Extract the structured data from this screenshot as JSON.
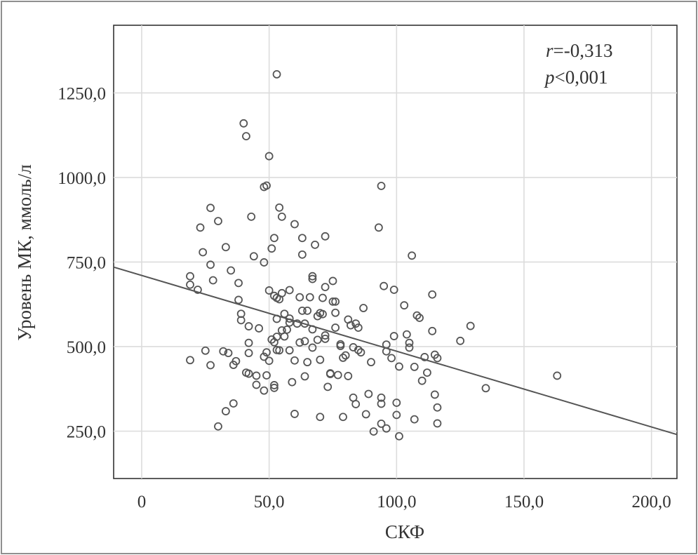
{
  "chart_data": {
    "type": "scatter",
    "title": "",
    "xlabel": "СКФ",
    "ylabel": "Уровень МК, ммоль/л",
    "xlim": [
      -11,
      210
    ],
    "ylim": [
      110,
      1450
    ],
    "x_ticks": [
      0,
      50,
      100,
      150,
      200
    ],
    "x_tick_labels": [
      "0",
      "50,0",
      "100,0",
      "150,0",
      "200,0"
    ],
    "y_ticks": [
      250,
      500,
      750,
      1000,
      1250
    ],
    "y_tick_labels": [
      "250,0",
      "500,0",
      "750,0",
      "1000,0",
      "1250,0"
    ],
    "grid": true,
    "annotation": {
      "r_symbol": "r",
      "r_value": "=-0,313",
      "p_symbol": "p",
      "p_value": "<0,001"
    },
    "regression_line": {
      "x": [
        -11,
        210
      ],
      "y": [
        735,
        240
      ]
    },
    "points": [
      [
        19,
        708
      ],
      [
        19,
        683
      ],
      [
        19,
        460
      ],
      [
        22,
        668
      ],
      [
        23,
        852
      ],
      [
        24,
        779
      ],
      [
        25,
        488
      ],
      [
        27,
        910
      ],
      [
        27,
        742
      ],
      [
        27,
        445
      ],
      [
        28,
        696
      ],
      [
        30,
        871
      ],
      [
        30,
        264
      ],
      [
        32,
        486
      ],
      [
        33,
        794
      ],
      [
        33,
        309
      ],
      [
        34,
        481
      ],
      [
        35,
        725
      ],
      [
        36,
        446
      ],
      [
        36,
        332
      ],
      [
        37,
        457
      ],
      [
        38,
        688
      ],
      [
        38,
        638
      ],
      [
        39,
        597
      ],
      [
        39,
        578
      ],
      [
        40,
        1160
      ],
      [
        41,
        1122
      ],
      [
        41,
        423
      ],
      [
        42,
        560
      ],
      [
        42,
        511
      ],
      [
        42,
        481
      ],
      [
        42,
        420
      ],
      [
        43,
        884
      ],
      [
        44,
        767
      ],
      [
        45,
        414
      ],
      [
        45,
        387
      ],
      [
        46,
        554
      ],
      [
        48,
        972
      ],
      [
        48,
        749
      ],
      [
        48,
        470
      ],
      [
        48,
        370
      ],
      [
        49,
        976
      ],
      [
        49,
        415
      ],
      [
        49,
        483
      ],
      [
        50,
        1063
      ],
      [
        50,
        666
      ],
      [
        50,
        458
      ],
      [
        51,
        790
      ],
      [
        51,
        521
      ],
      [
        52,
        821
      ],
      [
        52,
        650
      ],
      [
        52,
        513
      ],
      [
        52,
        386
      ],
      [
        52,
        378
      ],
      [
        53,
        1305
      ],
      [
        53,
        644
      ],
      [
        53,
        582
      ],
      [
        53,
        529
      ],
      [
        53,
        490
      ],
      [
        54,
        911
      ],
      [
        54,
        640
      ],
      [
        54,
        489
      ],
      [
        55,
        884
      ],
      [
        55,
        658
      ],
      [
        55,
        548
      ],
      [
        56,
        597
      ],
      [
        56,
        530
      ],
      [
        57,
        550
      ],
      [
        58,
        667
      ],
      [
        58,
        583
      ],
      [
        58,
        571
      ],
      [
        58,
        489
      ],
      [
        59,
        395
      ],
      [
        60,
        862
      ],
      [
        60,
        459
      ],
      [
        60,
        301
      ],
      [
        61,
        568
      ],
      [
        62,
        646
      ],
      [
        62,
        512
      ],
      [
        63,
        821
      ],
      [
        63,
        772
      ],
      [
        63,
        606
      ],
      [
        64,
        568
      ],
      [
        64,
        516
      ],
      [
        64,
        412
      ],
      [
        65,
        606
      ],
      [
        65,
        454
      ],
      [
        66,
        646
      ],
      [
        67,
        708
      ],
      [
        67,
        700
      ],
      [
        67,
        551
      ],
      [
        67,
        497
      ],
      [
        68,
        801
      ],
      [
        69,
        590
      ],
      [
        69,
        520
      ],
      [
        70,
        599
      ],
      [
        70,
        461
      ],
      [
        70,
        292
      ],
      [
        71,
        644
      ],
      [
        71,
        596
      ],
      [
        72,
        826
      ],
      [
        72,
        676
      ],
      [
        72,
        533
      ],
      [
        72,
        523
      ],
      [
        73,
        381
      ],
      [
        74,
        421
      ],
      [
        74,
        419
      ],
      [
        75,
        694
      ],
      [
        75,
        633
      ],
      [
        76,
        633
      ],
      [
        76,
        600
      ],
      [
        76,
        556
      ],
      [
        77,
        416
      ],
      [
        78,
        502
      ],
      [
        78,
        507
      ],
      [
        79,
        467
      ],
      [
        79,
        292
      ],
      [
        80,
        474
      ],
      [
        81,
        580
      ],
      [
        81,
        413
      ],
      [
        82,
        563
      ],
      [
        83,
        498
      ],
      [
        83,
        349
      ],
      [
        84,
        568
      ],
      [
        84,
        330
      ],
      [
        85,
        556
      ],
      [
        85,
        490
      ],
      [
        86,
        483
      ],
      [
        87,
        614
      ],
      [
        88,
        300
      ],
      [
        89,
        360
      ],
      [
        90,
        454
      ],
      [
        91,
        249
      ],
      [
        93,
        852
      ],
      [
        94,
        975
      ],
      [
        94,
        349
      ],
      [
        94,
        331
      ],
      [
        94,
        272
      ],
      [
        95,
        679
      ],
      [
        96,
        506
      ],
      [
        96,
        486
      ],
      [
        96,
        258
      ],
      [
        98,
        466
      ],
      [
        99,
        668
      ],
      [
        99,
        531
      ],
      [
        100,
        334
      ],
      [
        100,
        298
      ],
      [
        101,
        235
      ],
      [
        101,
        441
      ],
      [
        103,
        622
      ],
      [
        104,
        536
      ],
      [
        105,
        511
      ],
      [
        105,
        497
      ],
      [
        106,
        769
      ],
      [
        107,
        440
      ],
      [
        107,
        285
      ],
      [
        108,
        592
      ],
      [
        109,
        585
      ],
      [
        110,
        399
      ],
      [
        111,
        469
      ],
      [
        112,
        423
      ],
      [
        114,
        654
      ],
      [
        114,
        546
      ],
      [
        115,
        476
      ],
      [
        115,
        358
      ],
      [
        116,
        466
      ],
      [
        116,
        320
      ],
      [
        116,
        273
      ],
      [
        125,
        517
      ],
      [
        129,
        561
      ],
      [
        135,
        377
      ],
      [
        163,
        414
      ]
    ]
  }
}
